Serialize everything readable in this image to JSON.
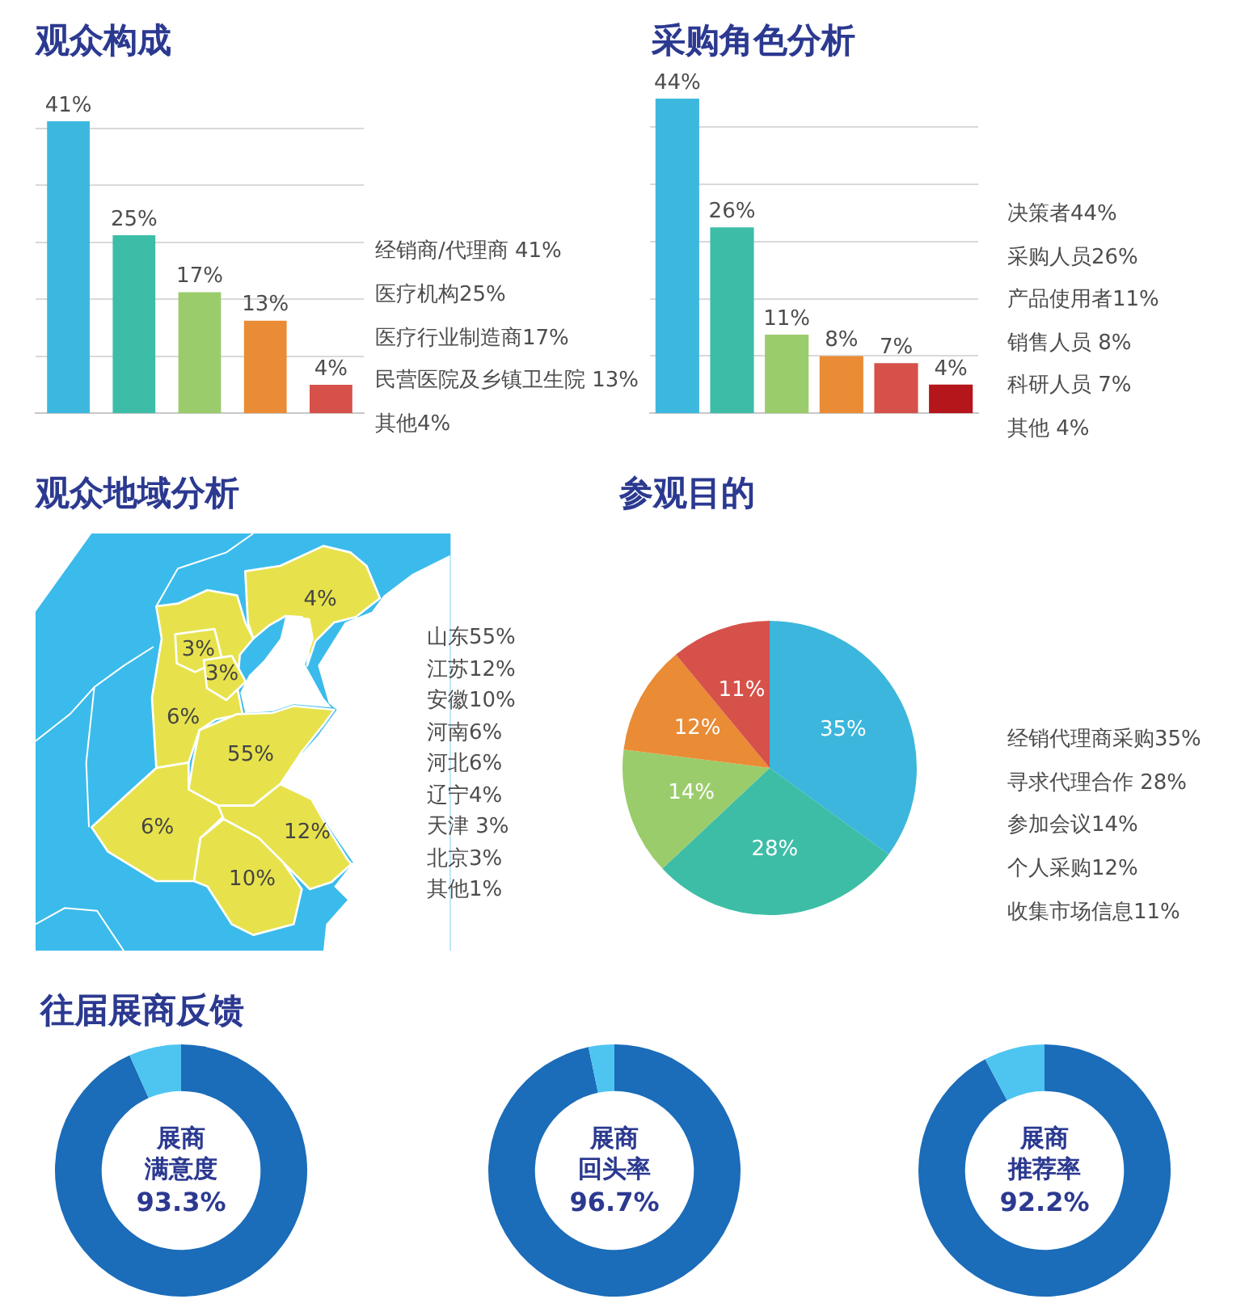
{
  "chart_data": [
    {
      "type": "bar",
      "title": "观众构成",
      "categories": [
        null,
        null,
        null,
        null,
        null
      ],
      "values": [
        41,
        25,
        17,
        13,
        4
      ],
      "colors": [
        "#3cb8df",
        "#3dbda8",
        "#9bcc6b",
        "#ea8b35",
        "#d6514a"
      ],
      "value_labels": [
        "41%",
        "25%",
        "17%",
        "13%",
        "4%"
      ],
      "ylim": [
        0,
        41
      ],
      "yticks": [
        {
          "value": 8,
          "label": null
        },
        {
          "value": 16,
          "label": null
        },
        {
          "value": 24,
          "label": null
        },
        {
          "value": 32,
          "label": null
        },
        {
          "value": 40,
          "label": null
        }
      ],
      "grid": "y",
      "annotations": [
        "经销商/代理商 41%",
        "医疗机构25%",
        "医疗行业制造商17%",
        "民营医院及乡镇卫生院 13%",
        "其他4%"
      ]
    },
    {
      "type": "bar",
      "title": "采购角色分析",
      "categories": [
        null,
        null,
        null,
        null,
        null,
        null
      ],
      "values": [
        44,
        26,
        11,
        8,
        7,
        4
      ],
      "colors": [
        "#3cb8df",
        "#3dbda8",
        "#9bcc6b",
        "#ea8b35",
        "#d6514a",
        "#b5161b"
      ],
      "value_labels": [
        "44%",
        "26%",
        "11%",
        "8%",
        "7%",
        "4%"
      ],
      "ylim": [
        0,
        44
      ],
      "yticks": [
        {
          "value": 8,
          "label": null
        },
        {
          "value": 16,
          "label": null
        },
        {
          "value": 24,
          "label": null
        },
        {
          "value": 32,
          "label": null
        },
        {
          "value": 40,
          "label": null
        }
      ],
      "grid": "y",
      "annotations": [
        "决策者44%",
        "采购人员26%",
        "产品使用者11%",
        "销售人员 8%",
        "科研人员 7%",
        "其他 4%"
      ]
    },
    {
      "type": "other",
      "title": "观众地域分析",
      "values": [
        4,
        3,
        3,
        6,
        55,
        6,
        12,
        10
      ],
      "value_labels": [
        "4%",
        "3%",
        "3%",
        "6%",
        "55%",
        "6%",
        "12%",
        "10%"
      ],
      "annotations": [
        "山东55%",
        "江苏12%",
        "安徽10%",
        "河南6%",
        "河北6%",
        "辽宁4%",
        "天津 3%",
        "北京3%",
        "其他1%"
      ]
    },
    {
      "type": "pie",
      "title": "参观目的",
      "categories": [
        null,
        null,
        null,
        null,
        null
      ],
      "values": [
        35,
        28,
        14,
        12,
        11
      ],
      "colors": [
        "#3cb6dc",
        "#3dbda6",
        "#9bcc6b",
        "#ea8b35",
        "#d6514a"
      ],
      "value_labels": [
        "35%",
        "28%",
        "14%",
        "12%",
        "11%"
      ],
      "annotations": [
        "经销代理商采购35%",
        "寻求代理合作 28%",
        "参加会议14%",
        "个人采购12%",
        "收集市场信息11%"
      ]
    },
    {
      "type": "other",
      "title": "往届展商反馈"
    },
    {
      "type": "donut",
      "title": "展商",
      "subtitle": "满意度",
      "categories": [
        null,
        null
      ],
      "values": [
        93.3,
        6.7
      ],
      "colors": [
        "#1b6cb9",
        "#4ec5f0"
      ],
      "value_labels": [
        "93.3%",
        null
      ]
    },
    {
      "type": "donut",
      "title": "展商",
      "subtitle": "回头率",
      "categories": [
        null,
        null
      ],
      "values": [
        96.7,
        3.3
      ],
      "colors": [
        "#1b6cb9",
        "#4ec5f0"
      ],
      "value_labels": [
        "96.7%",
        null
      ]
    },
    {
      "type": "donut",
      "title": "展商",
      "subtitle": "推荐率",
      "categories": [
        null,
        null
      ],
      "values": [
        92.2,
        7.8
      ],
      "colors": [
        "#1b6cb9",
        "#4ec5f0"
      ],
      "value_labels": [
        "92.2%",
        null
      ]
    }
  ]
}
